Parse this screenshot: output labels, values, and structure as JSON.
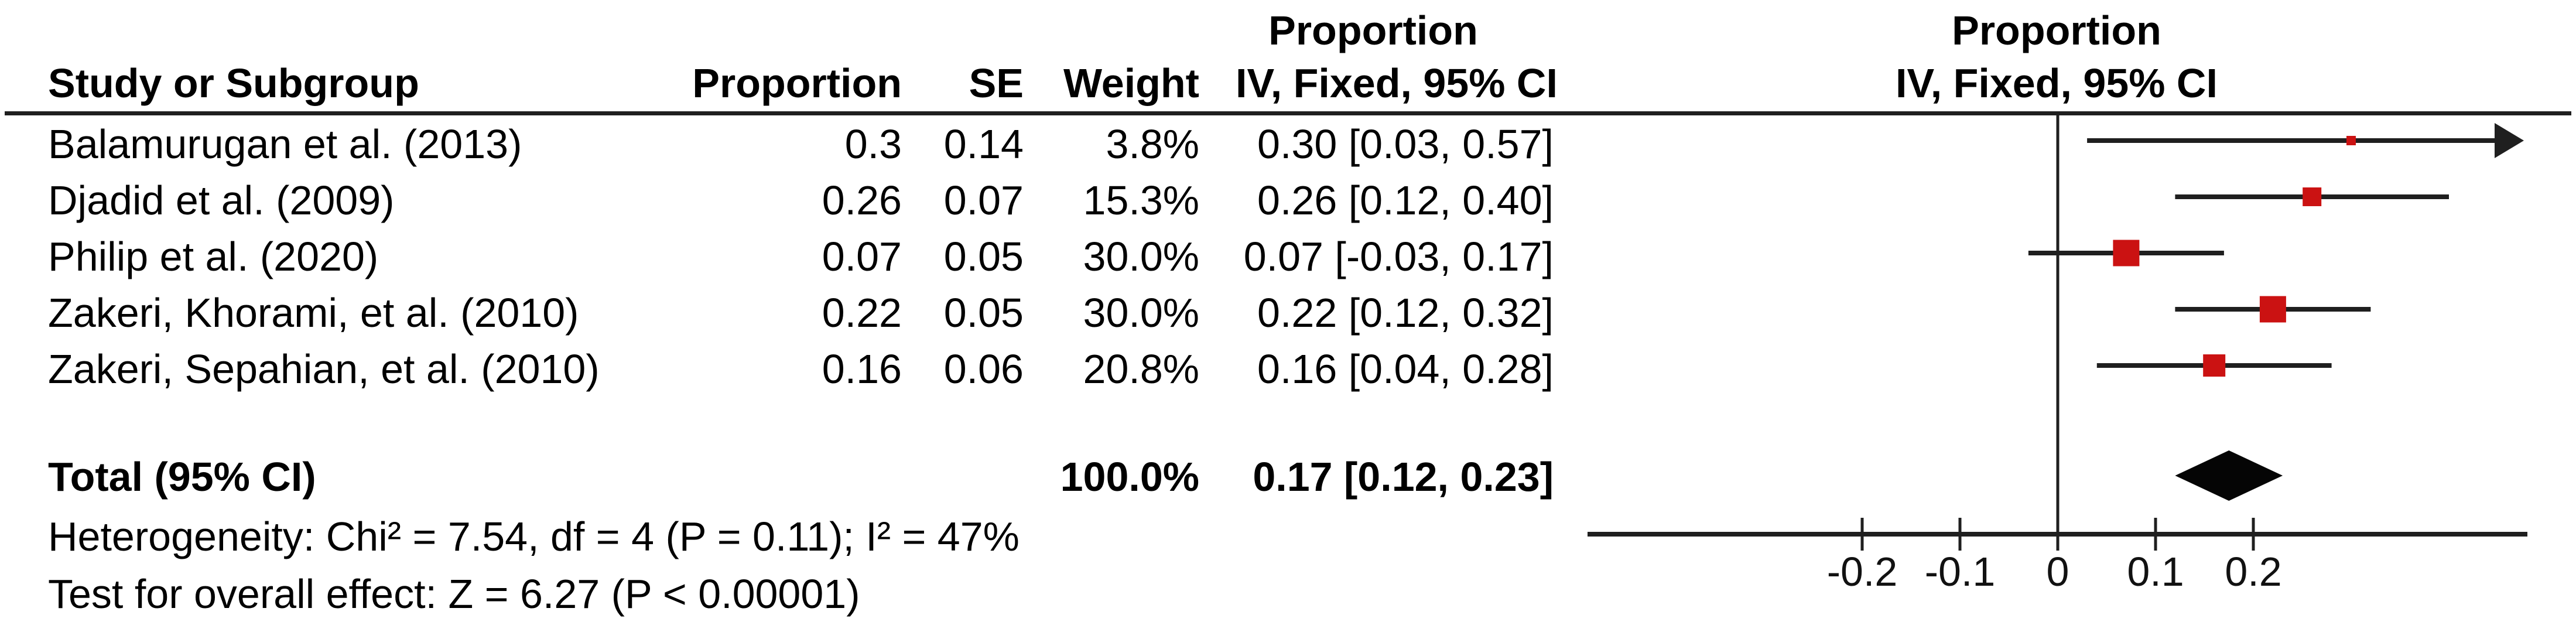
{
  "header": {
    "study_col": "Study or Subgroup",
    "proportion_col": "Proportion",
    "se_col": "SE",
    "weight_col": "Weight",
    "effect_col_line1": "Proportion",
    "effect_col_line2": "IV, Fixed, 95% CI",
    "plot_col_line1": "Proportion",
    "plot_col_line2": "IV, Fixed, 95% CI"
  },
  "table": {
    "rows": [
      {
        "study": "Balamurugan et al. (2013)",
        "proportion": "0.3",
        "se": "0.14",
        "weight": "3.8%",
        "ci": "0.30 [0.03, 0.57]"
      },
      {
        "study": "Djadid et al. (2009)",
        "proportion": "0.26",
        "se": "0.07",
        "weight": "15.3%",
        "ci": "0.26 [0.12, 0.40]"
      },
      {
        "study": "Philip et al. (2020)",
        "proportion": "0.07",
        "se": "0.05",
        "weight": "30.0%",
        "ci": "0.07 [-0.03, 0.17]"
      },
      {
        "study": "Zakeri, Khorami, et al. (2010)",
        "proportion": "0.22",
        "se": "0.05",
        "weight": "30.0%",
        "ci": "0.22 [0.12, 0.32]"
      },
      {
        "study": "Zakeri, Sepahian, et al. (2010)",
        "proportion": "0.16",
        "se": "0.06",
        "weight": "20.8%",
        "ci": "0.16 [0.04, 0.28]"
      }
    ],
    "total_row": {
      "label": "Total (95% CI)",
      "weight": "100.0%",
      "ci": "0.17 [0.12, 0.23]"
    }
  },
  "footer": {
    "heterogeneity": "Heterogeneity: Chi² = 7.54, df = 4 (P = 0.11); I² = 47%",
    "overall_effect": "Test for overall effect: Z = 6.27 (P < 0.00001)"
  },
  "axis": {
    "tick_labels": [
      "-0.2",
      "-0.1",
      "0",
      "0.1",
      "0.2"
    ]
  },
  "colors": {
    "marker_red": "#CB1212",
    "line_black": "#1f1f1f",
    "diamond_black": "#050505"
  },
  "chart_data": {
    "type": "forest",
    "measure": "Proportion",
    "effect_model": "IV, Fixed, 95% CI",
    "studies": [
      {
        "name": "Balamurugan et al. (2013)",
        "proportion": 0.3,
        "se": 0.14,
        "weight_pct": 3.8,
        "estimate": 0.3,
        "ci_lower": 0.03,
        "ci_upper": 0.57
      },
      {
        "name": "Djadid et al. (2009)",
        "proportion": 0.26,
        "se": 0.07,
        "weight_pct": 15.3,
        "estimate": 0.26,
        "ci_lower": 0.12,
        "ci_upper": 0.4
      },
      {
        "name": "Philip et al. (2020)",
        "proportion": 0.07,
        "se": 0.05,
        "weight_pct": 30.0,
        "estimate": 0.07,
        "ci_lower": -0.03,
        "ci_upper": 0.17
      },
      {
        "name": "Zakeri, Khorami, et al. (2010)",
        "proportion": 0.22,
        "se": 0.05,
        "weight_pct": 30.0,
        "estimate": 0.22,
        "ci_lower": 0.12,
        "ci_upper": 0.32
      },
      {
        "name": "Zakeri, Sepahian, et al. (2010)",
        "proportion": 0.16,
        "se": 0.06,
        "weight_pct": 20.8,
        "estimate": 0.16,
        "ci_lower": 0.04,
        "ci_upper": 0.28
      }
    ],
    "total": {
      "label": "Total (95% CI)",
      "estimate": 0.17,
      "ci_lower": 0.12,
      "ci_upper": 0.23,
      "weight_pct": 100.0
    },
    "heterogeneity": {
      "chi2": 7.54,
      "df": 4,
      "p": 0.11,
      "i2_pct": 47
    },
    "overall_effect": {
      "z": 6.27,
      "p_text": "P < 0.00001"
    },
    "axis": {
      "ticks": [
        -0.2,
        -0.1,
        0,
        0.1,
        0.2
      ],
      "xlim": [
        -0.48,
        0.48
      ],
      "zero_line": true,
      "grid": false
    }
  }
}
